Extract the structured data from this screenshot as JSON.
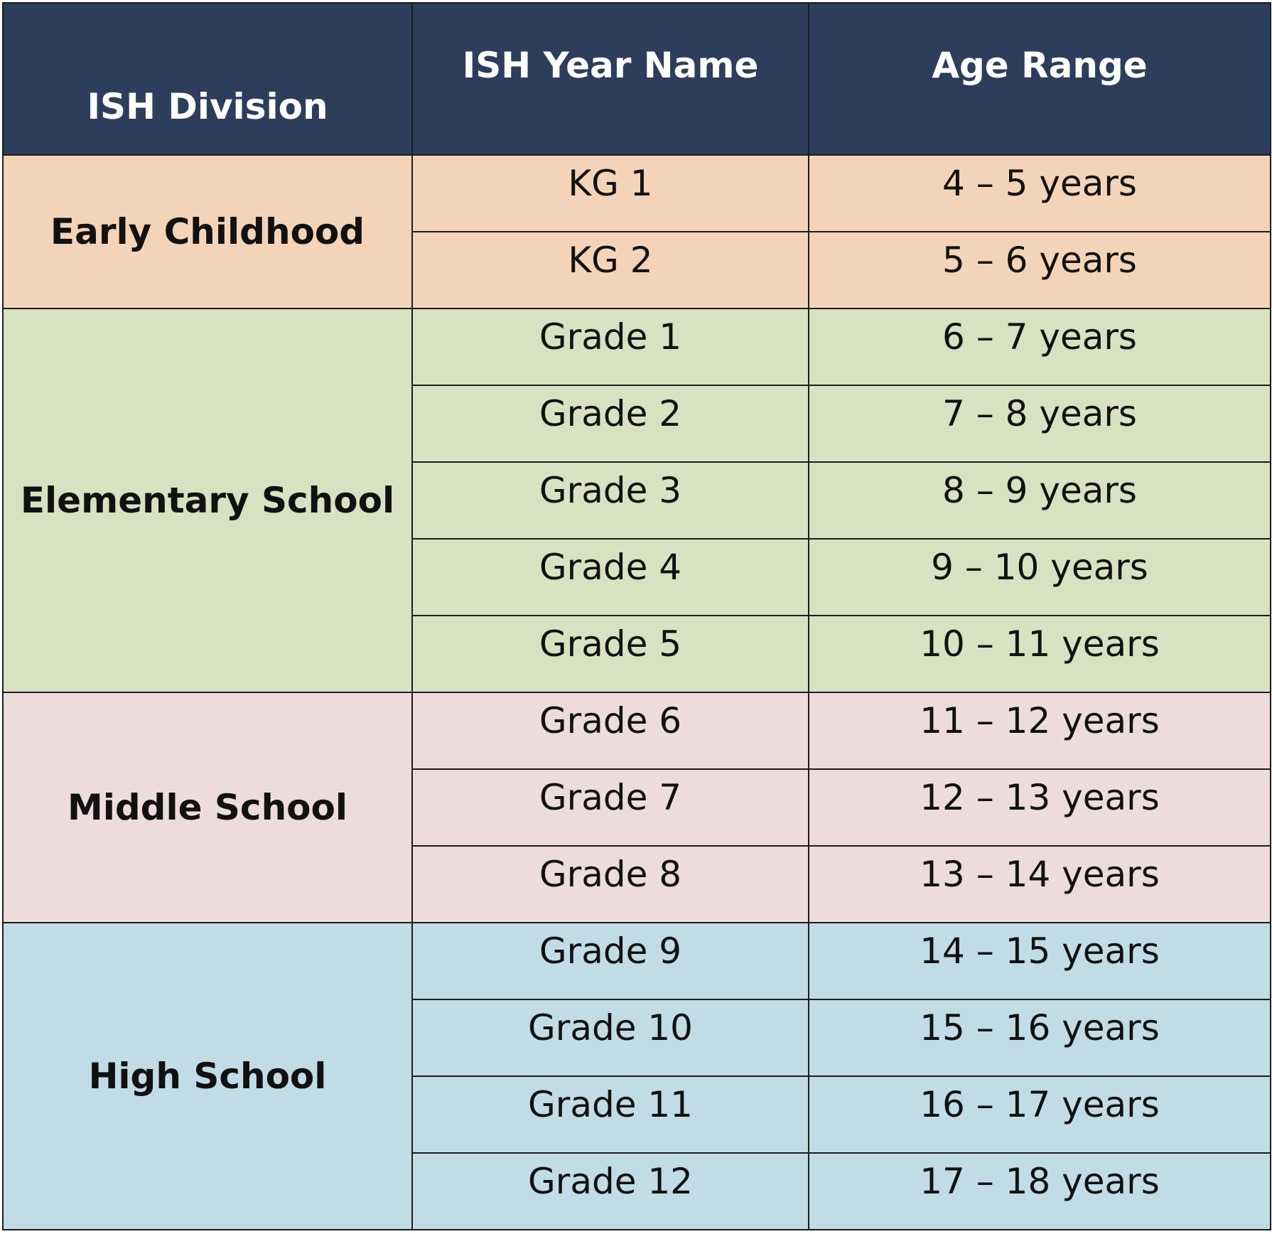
{
  "table": {
    "headers": {
      "division": "ISH Division",
      "year": "ISH Year Name",
      "age": "Age Range"
    },
    "colors": {
      "header": "#2c3e5c",
      "early_childhood": "#f4d4b8",
      "elementary_school": "#d8e2c2",
      "middle_school": "#eedcdc",
      "high_school": "#c1dce6"
    },
    "divisions": [
      {
        "name": "Early Childhood",
        "rows": [
          {
            "year": "KG 1",
            "age": "4 – 5 years"
          },
          {
            "year": "KG 2",
            "age": "5 – 6 years"
          }
        ]
      },
      {
        "name": "Elementary School",
        "rows": [
          {
            "year": "Grade 1",
            "age": "6 – 7 years"
          },
          {
            "year": "Grade 2",
            "age": "7 – 8 years"
          },
          {
            "year": "Grade 3",
            "age": "8 – 9 years"
          },
          {
            "year": "Grade 4",
            "age": "9 – 10 years"
          },
          {
            "year": "Grade 5",
            "age": "10 – 11 years"
          }
        ]
      },
      {
        "name": "Middle School",
        "rows": [
          {
            "year": "Grade 6",
            "age": "11 – 12 years"
          },
          {
            "year": "Grade 7",
            "age": "12 – 13 years"
          },
          {
            "year": "Grade 8",
            "age": "13 – 14 years"
          }
        ]
      },
      {
        "name": "High School",
        "rows": [
          {
            "year": "Grade 9",
            "age": "14 – 15 years"
          },
          {
            "year": "Grade 10",
            "age": "15 – 16 years"
          },
          {
            "year": "Grade 11",
            "age": "16 – 17 years"
          },
          {
            "year": "Grade 12",
            "age": "17 – 18 years"
          }
        ]
      }
    ]
  }
}
